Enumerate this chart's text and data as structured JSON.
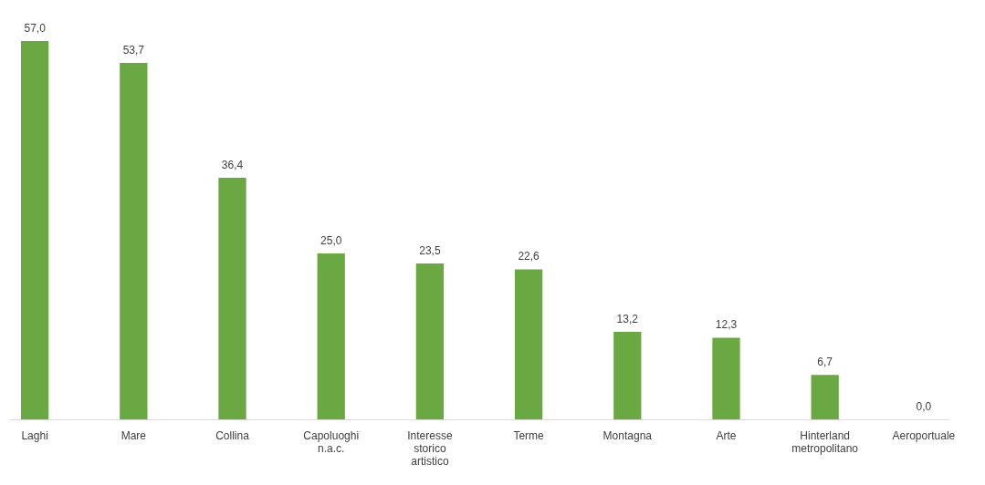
{
  "chart_data": {
    "type": "bar",
    "categories": [
      "Laghi",
      "Mare",
      "Collina",
      "Capoluoghi\nn.a.c.",
      "Interesse\nstorico\nartistico",
      "Terme",
      "Montagna",
      "Arte",
      "Hinterland\nmetropolitano",
      "Aeroportuale"
    ],
    "values": [
      57.0,
      53.7,
      36.4,
      25.0,
      23.5,
      22.6,
      13.2,
      12.3,
      6.7,
      0.0
    ],
    "value_labels": [
      "57,0",
      "53,7",
      "36,4",
      "25,0",
      "23,5",
      "22,6",
      "13,2",
      "12,3",
      "6,7",
      "0,0"
    ],
    "color": "#6aa842"
  }
}
